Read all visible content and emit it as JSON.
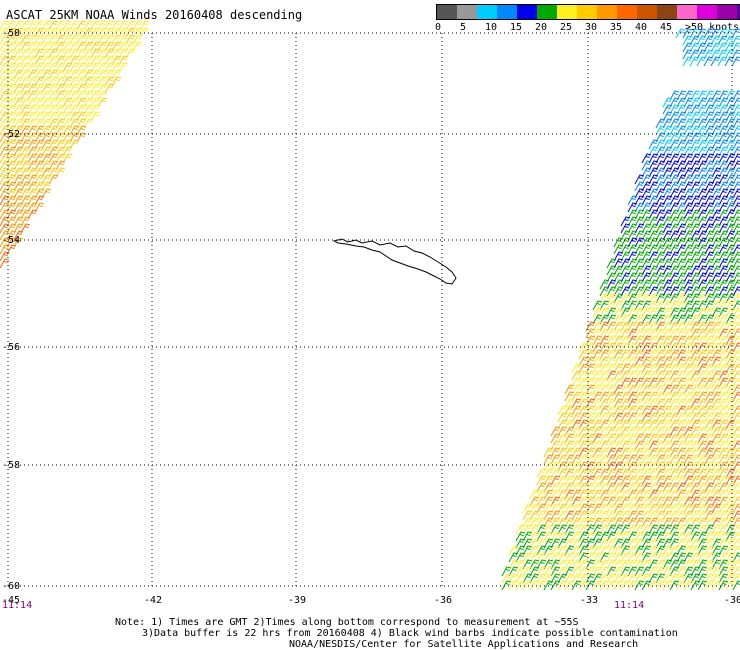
{
  "title": "ASCAT 25KM NOAA Winds 20160408 descending",
  "legend": {
    "colors": [
      "#555555",
      "#999999",
      "#00ccff",
      "#0088ff",
      "#0000ee",
      "#00aa00",
      "#ffee22",
      "#ffcc00",
      "#ff9900",
      "#ff6600",
      "#cc5500",
      "#8b4513",
      "#ff66cc",
      "#dd00dd",
      "#9900aa",
      "#550099"
    ],
    "labels": [
      "0",
      "5",
      "10",
      "15",
      "20",
      "25",
      "30",
      "35",
      "40",
      "45",
      ">50 knots"
    ]
  },
  "axes": {
    "lon_labels": [
      "-45",
      "-42",
      "-39",
      "-36",
      "-33",
      "-30"
    ],
    "lat_labels": [
      "-50",
      "-52",
      "-54",
      "-56",
      "-58",
      "-60"
    ]
  },
  "times": {
    "left": "11:14",
    "right": "11:14"
  },
  "notes": {
    "line1": "Note: 1) Times are GMT 2)Times along bottom correspond to measurement at ~55S",
    "line2": "3)Data buffer is 22 hrs from 20160408 4) Black wind barbs indicate possible contamination",
    "line3": "NOAA/NESDIS/Center for Satellite Applications and Research"
  }
}
